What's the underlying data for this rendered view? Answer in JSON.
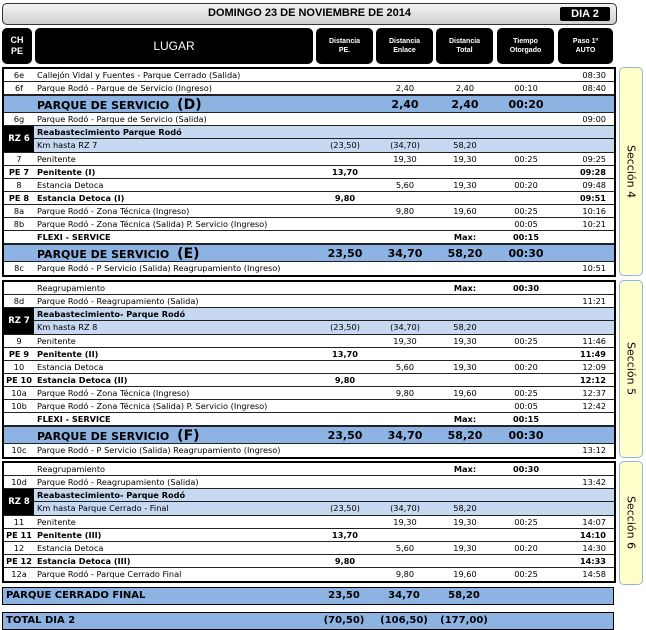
{
  "header": {
    "date": "DOMINGO 23 DE NOVIEMBRE DE 2014",
    "dia": "DIA 2"
  },
  "columns": {
    "ch": "CH\nPE",
    "lugar": "LUGAR",
    "pe": "Distancia\nPE.",
    "enlace": "Distancia\nEnlace",
    "total": "Distancia\nTotal",
    "tiempo": "Tiempo\nOtorgado",
    "paso": "Paso 1º\nAUTO"
  },
  "sections": [
    {
      "label": "Sección  4",
      "rows": [
        {
          "type": "normal",
          "ch": "6e",
          "lugar": "Callejón Vidal y Fuentes - Parque Cerrado (Salida)",
          "paso": "08:30"
        },
        {
          "type": "normal",
          "ch": "6f",
          "lugar": "Parque Rodó - Parque de Servicio (Ingreso)",
          "enlace": "2,40",
          "total": "2,40",
          "tiempo": "00:10",
          "paso": "08:40"
        },
        {
          "type": "ps",
          "label": "PARQUE DE SERVICIO",
          "letter": "(D)",
          "enlace": "2,40",
          "total": "2,40",
          "tiempo": "00:20"
        },
        {
          "type": "normal",
          "ch": "6g",
          "lugar": "Parque Rodó - Parque de Servicio (Salida)",
          "paso": "09:00"
        },
        {
          "type": "rz",
          "ch": "RZ 6",
          "title": "Reabastecimiento Parque Rodó",
          "sub": "Km hasta RZ 7",
          "pe": "(23,50)",
          "enlace": "(34,70)",
          "total": "58,20"
        },
        {
          "type": "normal",
          "ch": "7",
          "lugar": "Penitente",
          "enlace": "19,30",
          "total": "19,30",
          "tiempo": "00:25",
          "paso": "09:25"
        },
        {
          "type": "normal",
          "bold": true,
          "ch": "PE 7",
          "lugar": "Penitente (I)",
          "pe": "13,70",
          "paso": "09:28"
        },
        {
          "type": "normal",
          "ch": "8",
          "lugar": "Estancia Detoca",
          "enlace": "5,60",
          "total": "19,30",
          "tiempo": "00:20",
          "paso": "09:48"
        },
        {
          "type": "normal",
          "bold": true,
          "ch": "PE 8",
          "lugar": "Estancia Detoca (I)",
          "pe": "9,80",
          "paso": "09:51"
        },
        {
          "type": "normal",
          "ch": "8a",
          "lugar": "Parque Rodó - Zona Técnica (Ingreso)",
          "enlace": "9,80",
          "total": "19,60",
          "tiempo": "00:25",
          "paso": "10:16"
        },
        {
          "type": "normal",
          "ch": "8b",
          "lugar": "Parque Rodó - Zona Técnica (Salida) P. Servicio (Ingreso)",
          "tiempo": "00:05",
          "paso": "10:21"
        },
        {
          "type": "normal",
          "bold": true,
          "ch": "",
          "lugar": "FLEXI - SERVICE",
          "total": "Max:",
          "tiempo": "00:15"
        },
        {
          "type": "ps",
          "label": "PARQUE DE SERVICIO",
          "letter": "(E)",
          "pe": "23,50",
          "enlace": "34,70",
          "total": "58,20",
          "tiempo": "00:30"
        },
        {
          "type": "normal",
          "ch": "8c",
          "lugar": "Parque Rodó - P Servicio (Salida) Reagrupamiento (Ingreso)",
          "paso": "10:51"
        }
      ]
    },
    {
      "label": "Sección  5",
      "rows": [
        {
          "type": "normal",
          "ch": "",
          "lugar": "Reagrupamiento",
          "total": "Max:",
          "tiempo": "00:30",
          "tb": true
        },
        {
          "type": "normal",
          "ch": "8d",
          "lugar": "Parque Rodó - Reagrupamiento (Salida)",
          "paso": "11:21"
        },
        {
          "type": "rz",
          "ch": "RZ 7",
          "title": "Reabastecimiento- Parque Rodó",
          "sub": "Km hasta RZ 8",
          "pe": "(23,50)",
          "enlace": "(34,70)",
          "total": "58,20"
        },
        {
          "type": "normal",
          "ch": "9",
          "lugar": "Penitente",
          "enlace": "19,30",
          "total": "19,30",
          "tiempo": "00:25",
          "paso": "11:46"
        },
        {
          "type": "normal",
          "bold": true,
          "ch": "PE 9",
          "lugar": "Penitente (II)",
          "pe": "13,70",
          "paso": "11:49"
        },
        {
          "type": "normal",
          "ch": "10",
          "lugar": "Estancia Detoca",
          "enlace": "5,60",
          "total": "19,30",
          "tiempo": "00:20",
          "paso": "12:09"
        },
        {
          "type": "normal",
          "bold": true,
          "ch": "PE 10",
          "lugar": "Estancia Detoca (II)",
          "pe": "9,80",
          "paso": "12:12"
        },
        {
          "type": "normal",
          "ch": "10a",
          "lugar": "Parque Rodó - Zona Técnica (Ingreso)",
          "enlace": "9,80",
          "total": "19,60",
          "tiempo": "00:25",
          "paso": "12:37"
        },
        {
          "type": "normal",
          "ch": "10b",
          "lugar": "Parque Rodó - Zona Técnica (Salida) P. Servicio (Ingreso)",
          "tiempo": "00:05",
          "paso": "12:42"
        },
        {
          "type": "normal",
          "bold": true,
          "ch": "",
          "lugar": "FLEXI - SERVICE",
          "total": "Max:",
          "tiempo": "00:15"
        },
        {
          "type": "ps",
          "label": "PARQUE DE SERVICIO",
          "letter": "(F)",
          "pe": "23,50",
          "enlace": "34,70",
          "total": "58,20",
          "tiempo": "00:30"
        },
        {
          "type": "normal",
          "ch": "10c",
          "lugar": "Parque Rodó - P Servicio (Salida) Reagrupamiento (Ingreso)",
          "paso": "13:12"
        }
      ]
    },
    {
      "label": "Sección  6",
      "rows": [
        {
          "type": "normal",
          "ch": "",
          "lugar": "Reagrupamiento",
          "total": "Max:",
          "tiempo": "00:30",
          "tb": true
        },
        {
          "type": "normal",
          "ch": "10d",
          "lugar": "Parque Rodó - Reagrupamiento (Salida)",
          "paso": "13:42"
        },
        {
          "type": "rz",
          "ch": "RZ 8",
          "title": "Reabastecimiento- Parque Rodó",
          "sub": "Km hasta Parque Cerrado - Final",
          "pe": "(23,50)",
          "enlace": "(34,70)",
          "total": "58,20"
        },
        {
          "type": "normal",
          "ch": "11",
          "lugar": "Penitente",
          "enlace": "19,30",
          "total": "19,30",
          "tiempo": "00:25",
          "paso": "14:07"
        },
        {
          "type": "normal",
          "bold": true,
          "ch": "PE 11",
          "lugar": "Penitente (III)",
          "pe": "13,70",
          "paso": "14:10"
        },
        {
          "type": "normal",
          "ch": "12",
          "lugar": "Estancia Detoca",
          "enlace": "5,60",
          "total": "19,30",
          "tiempo": "00:20",
          "paso": "14:30"
        },
        {
          "type": "normal",
          "bold": true,
          "ch": "PE 12",
          "lugar": "Estancia Detoca (III)",
          "pe": "9,80",
          "paso": "14:33"
        },
        {
          "type": "normal",
          "ch": "12a",
          "lugar": "Parque Rodó - Parque Cerrado Final",
          "enlace": "9,80",
          "total": "19,60",
          "tiempo": "00:25",
          "paso": "14:58"
        }
      ]
    }
  ],
  "final": {
    "label": "PARQUE CERRADO FINAL",
    "pe": "23,50",
    "enlace": "34,70",
    "total": "58,20"
  },
  "total": {
    "label": "TOTAL DIA 2",
    "pe": "(70,50)",
    "enlace": "(106,50)",
    "total": "(177,00)"
  },
  "colors": {
    "service_bar": "#8db3e2",
    "refuel_bar": "#c6d9f1",
    "section_tab": "#ffffcc"
  }
}
